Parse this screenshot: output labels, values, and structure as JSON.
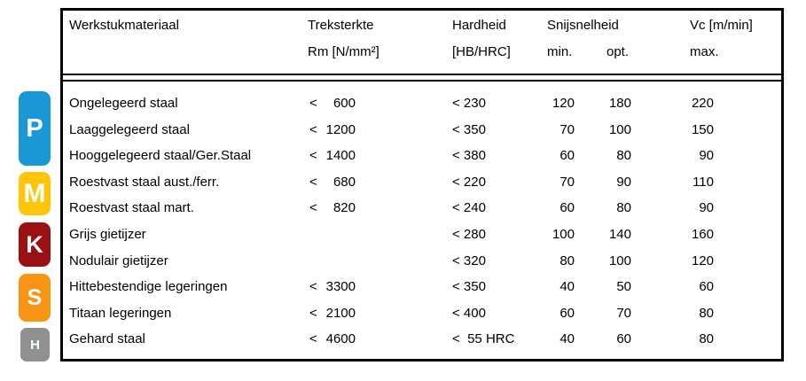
{
  "page": {
    "background": "#ffffff",
    "text_color": "#000000"
  },
  "iso_badges": [
    {
      "label": "P",
      "color": "#1a97d5"
    },
    {
      "label": "M",
      "color": "#fec50a"
    },
    {
      "label": "K",
      "color": "#9b1013"
    },
    {
      "label": "S",
      "color": "#f79413"
    },
    {
      "label": "H",
      "color": "#8f9092"
    }
  ],
  "table": {
    "headers": {
      "material": "Werkstukmateriaal",
      "treksterkte_line1": "Treksterkte",
      "treksterkte_line2": "Rm [N/mm²]",
      "hardheid_line1": "Hardheid",
      "hardheid_line2": "[HB/HRC]",
      "snijsnelheid": "Snijsnelheid",
      "min": "min.",
      "opt": "opt.",
      "vc": "Vc [m/min]",
      "max": "max."
    },
    "rows": [
      {
        "material": "Ongelegeerd staal",
        "rm_lt": "<",
        "rm": "600",
        "hardheid": "< 230",
        "vc_min": "120",
        "vc_opt": "180",
        "vc_max": "220"
      },
      {
        "material": "Laaggelegeerd staal",
        "rm_lt": "<",
        "rm": "1200",
        "hardheid": "< 350",
        "vc_min": "70",
        "vc_opt": "100",
        "vc_max": "150"
      },
      {
        "material": "Hooggelegeerd staal/Ger.Staal",
        "rm_lt": "<",
        "rm": "1400",
        "hardheid": "< 380",
        "vc_min": "60",
        "vc_opt": "80",
        "vc_max": "90"
      },
      {
        "material": "Roestvast staal aust./ferr.",
        "rm_lt": "<",
        "rm": "680",
        "hardheid": "< 220",
        "vc_min": "70",
        "vc_opt": "90",
        "vc_max": "110"
      },
      {
        "material": "Roestvast staal mart.",
        "rm_lt": "<",
        "rm": "820",
        "hardheid": "< 240",
        "vc_min": "60",
        "vc_opt": "80",
        "vc_max": "90"
      },
      {
        "material": "Grijs gietijzer",
        "rm_lt": "",
        "rm": "",
        "hardheid": "< 280",
        "vc_min": "100",
        "vc_opt": "140",
        "vc_max": "160"
      },
      {
        "material": "Nodulair gietijzer",
        "rm_lt": "",
        "rm": "",
        "hardheid": "< 320",
        "vc_min": "80",
        "vc_opt": "100",
        "vc_max": "120"
      },
      {
        "material": "Hittebestendige legeringen",
        "rm_lt": "<",
        "rm": "3300",
        "hardheid": "< 350",
        "vc_min": "40",
        "vc_opt": "50",
        "vc_max": "60"
      },
      {
        "material": "Titaan legeringen",
        "rm_lt": "<",
        "rm": "2100",
        "hardheid": "< 400",
        "vc_min": "60",
        "vc_opt": "70",
        "vc_max": "80"
      },
      {
        "material": "Gehard staal",
        "rm_lt": "<",
        "rm": "4600",
        "hardheid": "<  55 HRC",
        "vc_min": "40",
        "vc_opt": "60",
        "vc_max": "80"
      }
    ]
  }
}
